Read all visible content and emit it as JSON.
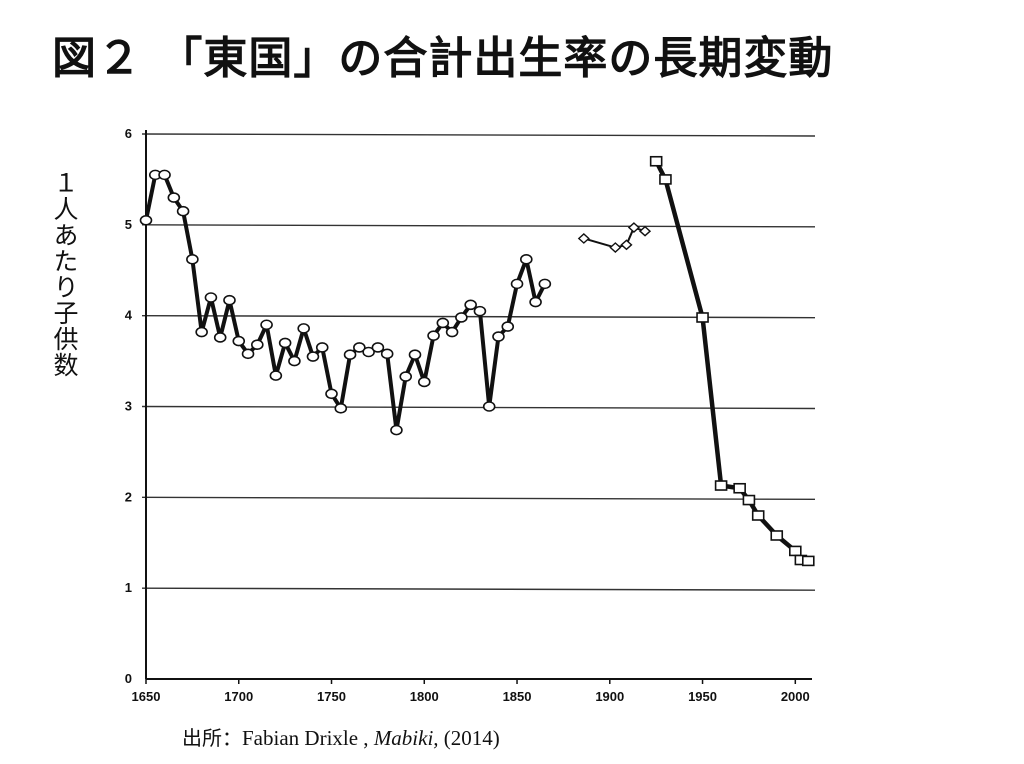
{
  "title": "図２ 「東国」の合計出生率の長期変動",
  "source": {
    "prefix": "出所：",
    "author": "Fabian Drixle , ",
    "work": "Mabiki,",
    "year": " (2014)"
  },
  "chart_data": {
    "type": "line",
    "title": "図２ 「東国」の合計出生率の長期変動",
    "xlabel": "",
    "ylabel": "１人あたり子供数",
    "xlim": [
      1650,
      2009
    ],
    "ylim": [
      0,
      6
    ],
    "xticks": [
      1650,
      1700,
      1750,
      1800,
      1850,
      1900,
      1950,
      2000
    ],
    "yticks": [
      0,
      1,
      2,
      3,
      4,
      5,
      6
    ],
    "grid": "horizontal",
    "colors": {
      "line": "#111111",
      "marker_fill": "#ffffff",
      "grid": "#333333"
    },
    "series": [
      {
        "marker": "circle",
        "x": [
          1650,
          1655,
          1660,
          1665,
          1670,
          1675,
          1680,
          1685,
          1690,
          1695,
          1700,
          1705,
          1710,
          1715,
          1720,
          1725,
          1730,
          1735,
          1740,
          1745,
          1750,
          1755,
          1760,
          1765,
          1770,
          1775,
          1780,
          1785,
          1790,
          1795,
          1800,
          1805,
          1810,
          1815,
          1820,
          1825,
          1830,
          1835,
          1840,
          1845,
          1850,
          1855,
          1860,
          1865
        ],
        "y": [
          5.05,
          5.55,
          5.55,
          5.3,
          5.15,
          4.62,
          3.82,
          4.2,
          3.76,
          4.17,
          3.72,
          3.58,
          3.68,
          3.9,
          3.34,
          3.7,
          3.5,
          3.86,
          3.55,
          3.65,
          3.14,
          2.98,
          3.57,
          3.65,
          3.6,
          3.65,
          3.58,
          2.74,
          3.33,
          3.57,
          3.27,
          3.78,
          3.92,
          3.82,
          3.98,
          4.12,
          4.05,
          3.0,
          3.77,
          3.88,
          4.35,
          4.62,
          4.15,
          4.35
        ]
      },
      {
        "marker": "diamond",
        "x": [
          1886,
          1903,
          1909,
          1913,
          1919
        ],
        "y": [
          4.85,
          4.75,
          4.78,
          4.97,
          4.93
        ]
      },
      {
        "marker": "square",
        "x": [
          1925,
          1930,
          1950,
          1960,
          1970,
          1975,
          1980,
          1990,
          2000,
          2003,
          2007
        ],
        "y": [
          5.7,
          5.5,
          3.98,
          2.13,
          2.1,
          1.97,
          1.8,
          1.58,
          1.41,
          1.31,
          1.3
        ]
      }
    ]
  }
}
